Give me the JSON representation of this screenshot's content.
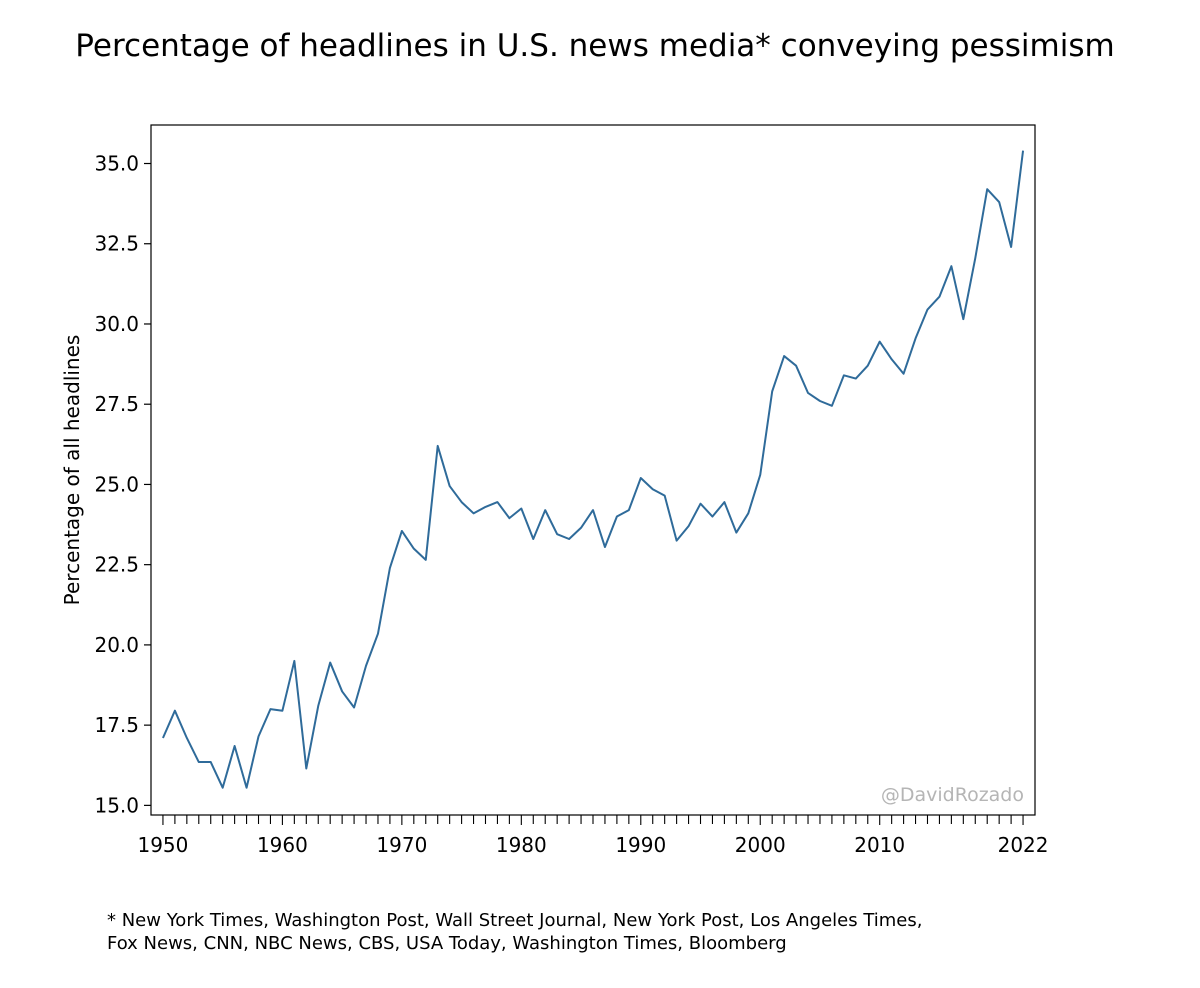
{
  "chart_data": {
    "type": "line",
    "title": "Percentage of headlines in U.S. news media* conveying pessimism",
    "xlabel": "",
    "ylabel": "Percentage of all headlines",
    "xlim": [
      1949,
      2023
    ],
    "ylim": [
      14.7,
      36.2
    ],
    "x_ticks": [
      1950,
      1960,
      1970,
      1980,
      1990,
      2000,
      2010,
      2022
    ],
    "y_ticks": [
      15.0,
      17.5,
      20.0,
      22.5,
      25.0,
      27.5,
      30.0,
      32.5,
      35.0
    ],
    "x_tick_labels": [
      "1950",
      "1960",
      "1970",
      "1980",
      "1990",
      "2000",
      "2010",
      "2022"
    ],
    "y_tick_labels": [
      "15.0",
      "17.5",
      "20.0",
      "22.5",
      "25.0",
      "27.5",
      "30.0",
      "32.5",
      "35.0"
    ],
    "grid": false,
    "line_color": "#2f6b9a",
    "watermark": "@DavidRozado",
    "x": [
      1950,
      1951,
      1952,
      1953,
      1954,
      1955,
      1956,
      1957,
      1958,
      1959,
      1960,
      1961,
      1962,
      1963,
      1964,
      1965,
      1966,
      1967,
      1968,
      1969,
      1970,
      1971,
      1972,
      1973,
      1974,
      1975,
      1976,
      1977,
      1978,
      1979,
      1980,
      1981,
      1982,
      1983,
      1984,
      1985,
      1986,
      1987,
      1988,
      1989,
      1990,
      1991,
      1992,
      1993,
      1994,
      1995,
      1996,
      1997,
      1998,
      1999,
      2000,
      2001,
      2002,
      2003,
      2004,
      2005,
      2006,
      2007,
      2008,
      2009,
      2010,
      2011,
      2012,
      2013,
      2014,
      2015,
      2016,
      2017,
      2018,
      2019,
      2020,
      2021,
      2022
    ],
    "values": [
      17.1,
      17.95,
      17.1,
      16.35,
      16.35,
      15.55,
      16.85,
      15.55,
      17.15,
      18.0,
      17.95,
      19.5,
      16.15,
      18.1,
      19.45,
      18.55,
      18.05,
      19.35,
      20.35,
      22.4,
      23.55,
      23.0,
      22.65,
      26.2,
      24.95,
      24.45,
      24.1,
      24.3,
      24.45,
      23.95,
      24.25,
      23.3,
      24.2,
      23.45,
      23.3,
      23.65,
      24.2,
      23.05,
      24.0,
      24.2,
      25.2,
      24.85,
      24.65,
      23.25,
      23.7,
      24.4,
      24.0,
      24.45,
      23.5,
      24.1,
      25.3,
      27.9,
      29.0,
      28.7,
      27.85,
      27.6,
      27.45,
      28.4,
      28.3,
      28.7,
      29.45,
      28.9,
      28.45,
      29.55,
      30.45,
      30.85,
      31.8,
      30.15,
      32.05,
      34.2,
      33.8,
      32.4,
      35.4
    ]
  },
  "footnote": {
    "line1": "* New York Times, Washington Post, Wall Street Journal, New York Post, Los Angeles Times,",
    "line2": "Fox News, CNN, NBC News, CBS, USA Today, Washington Times, Bloomberg"
  }
}
